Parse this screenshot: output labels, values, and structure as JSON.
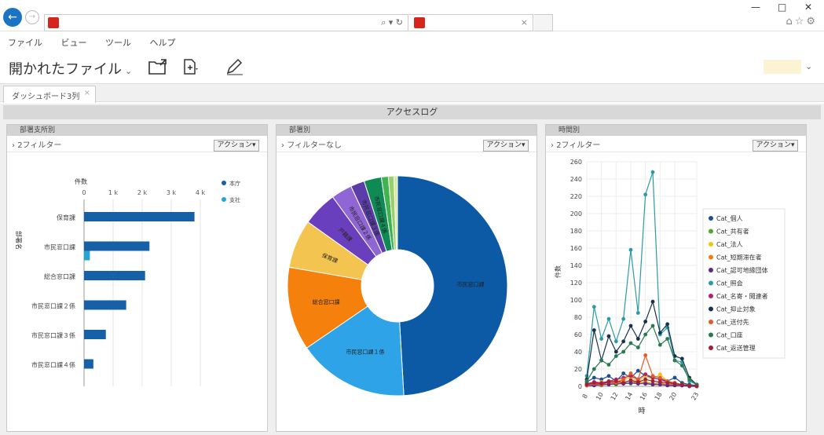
{
  "browser": {
    "back_glyph": "←",
    "fwd_glyph": "→",
    "addr_icons": "⌕ ▾ ↻",
    "tab_close": "×",
    "win_min": "—",
    "win_max": "□",
    "win_close": "✕",
    "right_icons": "⌂☆⚙"
  },
  "menu": {
    "items": [
      "ファイル",
      "ビュー",
      "ツール",
      "ヘルプ"
    ]
  },
  "toolbar": {
    "title": "開かれたファイル",
    "title_caret": "⌄",
    "icons": [
      "open-folder-icon",
      "export-icon",
      "edit-pencil-icon"
    ],
    "more": "⌄"
  },
  "doc_tab": {
    "label": "ダッシュボード3列",
    "close": "×"
  },
  "dashboard": {
    "title": "アクセスログ"
  },
  "panels": [
    {
      "title": "部署支所別",
      "filter": "2フィルター",
      "action": "アクション▾"
    },
    {
      "title": "部署別",
      "filter": "フィルターなし",
      "action": "アクション▾"
    },
    {
      "title": "時間別",
      "filter": "2フィルター",
      "action": "アクション▾"
    }
  ],
  "chart_data": [
    {
      "type": "bar",
      "orientation": "horizontal",
      "title": "",
      "xlabel": "件数",
      "ylabel": "部署名",
      "xlim": [
        0,
        4000
      ],
      "x_ticks": [
        "0",
        "1 k",
        "2 k",
        "3 k",
        "4 k"
      ],
      "categories": [
        "保育課",
        "市民窓口課",
        "総合窓口課",
        "市民窓口課２係",
        "市民窓口課３係",
        "市民窓口課４係"
      ],
      "series": [
        {
          "name": "本庁",
          "color": "#1660a8",
          "values": [
            3800,
            2250,
            2100,
            1450,
            750,
            320
          ]
        },
        {
          "name": "支社",
          "color": "#27a4cf",
          "values": [
            0,
            200,
            0,
            0,
            0,
            0
          ]
        }
      ],
      "legend_position": "top-right"
    },
    {
      "type": "pie",
      "donut": true,
      "slices": [
        {
          "label": "市民窓口課",
          "value": 48,
          "color": "#0c5aa6"
        },
        {
          "label": "市民窓口課１係",
          "value": 16,
          "color": "#2fa3e8"
        },
        {
          "label": "総合窓口課",
          "value": 12,
          "color": "#f5810c"
        },
        {
          "label": "保育課",
          "value": 7,
          "color": "#f4c451"
        },
        {
          "label": "戸籍課",
          "value": 5,
          "color": "#6a3fbd"
        },
        {
          "label": "市民窓口課２係",
          "value": 3,
          "color": "#8f66d4"
        },
        {
          "label": "市民窓口課３係",
          "value": 2,
          "color": "#5a3da8"
        },
        {
          "label": "市民窓口課４係",
          "value": 2.5,
          "color": "#0f8a55"
        },
        {
          "label": "",
          "value": 1,
          "color": "#3fb34f"
        },
        {
          "label": "",
          "value": 0.8,
          "color": "#9ad06b"
        },
        {
          "label": "",
          "value": 0.5,
          "color": "#d4e8a0"
        }
      ]
    },
    {
      "type": "line",
      "xlabel": "時",
      "ylabel": "件数",
      "x": [
        8,
        9,
        10,
        11,
        12,
        13,
        14,
        15,
        16,
        17,
        18,
        19,
        20,
        21,
        22,
        23
      ],
      "x_ticks": [
        "8",
        "10",
        "12",
        "14",
        "16",
        "18",
        "20",
        "23"
      ],
      "ylim": [
        0,
        260
      ],
      "y_ticks": [
        0,
        20,
        40,
        60,
        80,
        100,
        120,
        140,
        160,
        180,
        200,
        220,
        240,
        260
      ],
      "legend_position": "right",
      "series": [
        {
          "name": "Cat_個人",
          "color": "#1d4f91",
          "values": [
            5,
            10,
            8,
            12,
            6,
            15,
            10,
            18,
            12,
            10,
            8,
            6,
            10,
            4,
            2,
            1
          ]
        },
        {
          "name": "Cat_共有者",
          "color": "#4ea72e",
          "values": [
            1,
            2,
            1,
            3,
            2,
            4,
            3,
            5,
            4,
            3,
            2,
            2,
            3,
            1,
            1,
            0
          ]
        },
        {
          "name": "Cat_法人",
          "color": "#f0c419",
          "values": [
            2,
            3,
            5,
            4,
            6,
            8,
            10,
            6,
            12,
            8,
            14,
            6,
            4,
            2,
            1,
            0
          ]
        },
        {
          "name": "Cat_短期滞在者",
          "color": "#f07e12",
          "values": [
            1,
            2,
            2,
            3,
            4,
            5,
            6,
            4,
            5,
            3,
            4,
            2,
            2,
            1,
            0,
            0
          ]
        },
        {
          "name": "Cat_認可地縁団体",
          "color": "#5b2a86",
          "values": [
            1,
            1,
            2,
            2,
            3,
            3,
            4,
            3,
            3,
            2,
            2,
            1,
            1,
            1,
            0,
            0
          ]
        },
        {
          "name": "Cat_照会",
          "color": "#2e9aa8",
          "values": [
            12,
            92,
            55,
            78,
            52,
            78,
            158,
            85,
            222,
            248,
            60,
            68,
            30,
            28,
            6,
            2
          ]
        },
        {
          "name": "Cat_名寄・閲連者",
          "color": "#b0206e",
          "values": [
            3,
            5,
            4,
            6,
            8,
            10,
            12,
            8,
            14,
            10,
            8,
            5,
            4,
            2,
            1,
            0
          ]
        },
        {
          "name": "Cat_抑止対象",
          "color": "#17324f",
          "values": [
            8,
            65,
            30,
            58,
            40,
            52,
            70,
            55,
            75,
            98,
            62,
            72,
            35,
            32,
            10,
            2
          ]
        },
        {
          "name": "Cat_送付先",
          "color": "#e45a2a",
          "values": [
            1,
            3,
            2,
            5,
            4,
            8,
            15,
            8,
            36,
            12,
            10,
            6,
            4,
            2,
            1,
            0
          ]
        },
        {
          "name": "Cat_口座",
          "color": "#2a7a50",
          "values": [
            6,
            20,
            30,
            25,
            35,
            40,
            50,
            45,
            60,
            70,
            48,
            55,
            30,
            24,
            8,
            2
          ]
        },
        {
          "name": "Cat_返送管理",
          "color": "#a0203a",
          "values": [
            2,
            4,
            3,
            5,
            6,
            4,
            7,
            5,
            8,
            6,
            5,
            4,
            3,
            2,
            1,
            0
          ]
        }
      ]
    }
  ]
}
